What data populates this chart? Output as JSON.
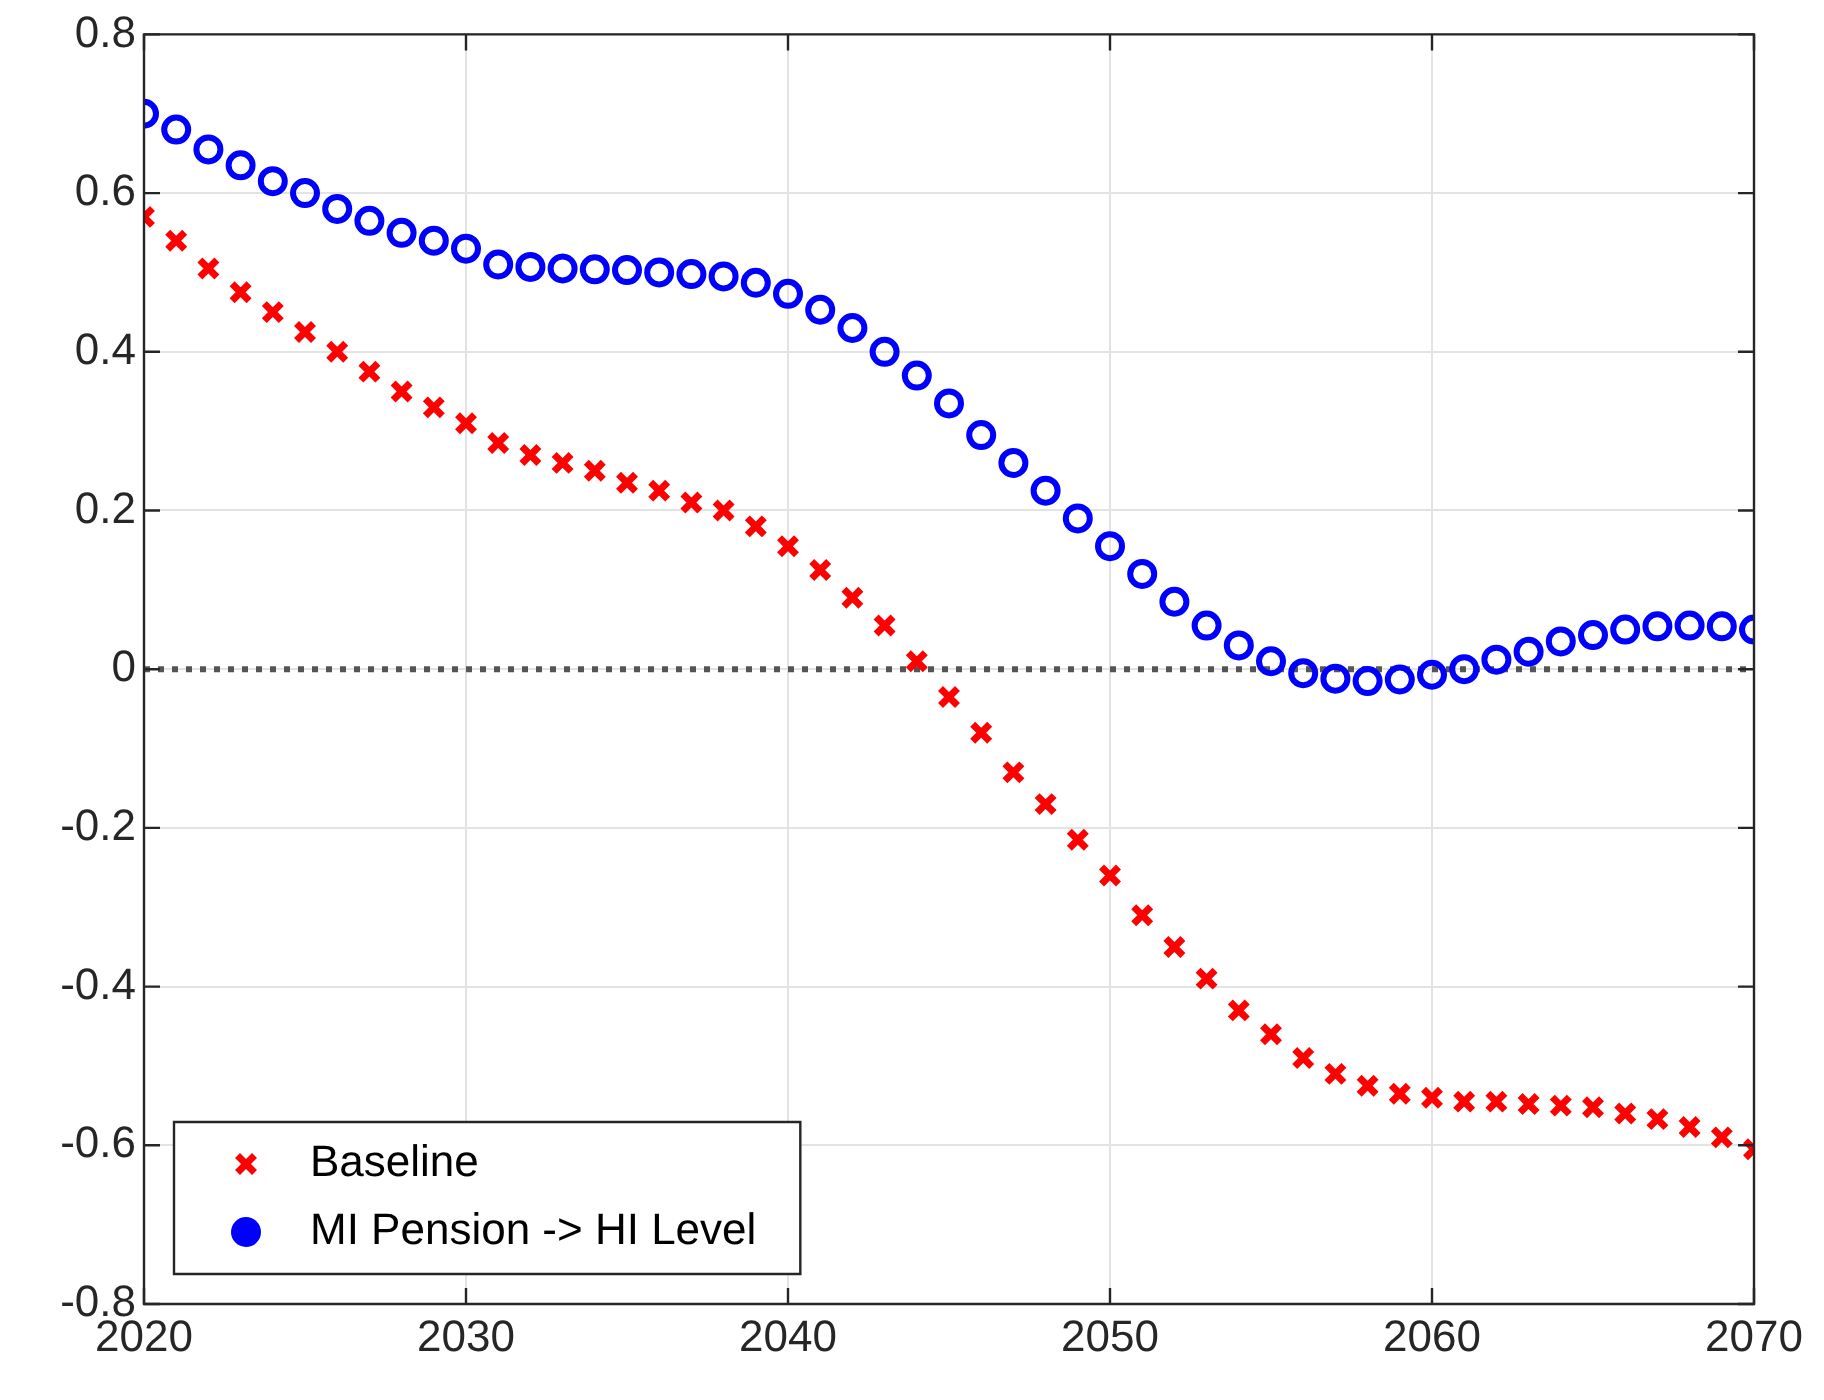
{
  "chart_data": {
    "type": "scatter",
    "x": [
      2020,
      2021,
      2022,
      2023,
      2024,
      2025,
      2026,
      2027,
      2028,
      2029,
      2030,
      2031,
      2032,
      2033,
      2034,
      2035,
      2036,
      2037,
      2038,
      2039,
      2040,
      2041,
      2042,
      2043,
      2044,
      2045,
      2046,
      2047,
      2048,
      2049,
      2050,
      2051,
      2052,
      2053,
      2054,
      2055,
      2056,
      2057,
      2058,
      2059,
      2060,
      2061,
      2062,
      2063,
      2064,
      2065,
      2066,
      2067,
      2068,
      2069,
      2070
    ],
    "series": [
      {
        "name": "Baseline",
        "color": "#ff0000",
        "marker": "cross",
        "values": [
          0.57,
          0.54,
          0.505,
          0.475,
          0.45,
          0.425,
          0.4,
          0.375,
          0.35,
          0.33,
          0.31,
          0.285,
          0.27,
          0.26,
          0.25,
          0.235,
          0.225,
          0.21,
          0.2,
          0.18,
          0.155,
          0.125,
          0.09,
          0.055,
          0.01,
          -0.035,
          -0.08,
          -0.13,
          -0.17,
          -0.215,
          -0.26,
          -0.31,
          -0.35,
          -0.39,
          -0.43,
          -0.46,
          -0.49,
          -0.51,
          -0.525,
          -0.535,
          -0.54,
          -0.545,
          -0.545,
          -0.548,
          -0.55,
          -0.552,
          -0.56,
          -0.567,
          -0.577,
          -0.59,
          -0.605
        ]
      },
      {
        "name": "MI Pension -> HI Level",
        "color": "#0000ff",
        "marker": "circle",
        "values": [
          0.7,
          0.68,
          0.655,
          0.635,
          0.615,
          0.6,
          0.58,
          0.565,
          0.55,
          0.54,
          0.53,
          0.51,
          0.507,
          0.505,
          0.504,
          0.503,
          0.5,
          0.498,
          0.495,
          0.487,
          0.473,
          0.453,
          0.43,
          0.4,
          0.37,
          0.335,
          0.295,
          0.26,
          0.225,
          0.19,
          0.155,
          0.12,
          0.085,
          0.055,
          0.03,
          0.01,
          -0.005,
          -0.012,
          -0.015,
          -0.013,
          -0.007,
          0.0,
          0.012,
          0.022,
          0.035,
          0.043,
          0.05,
          0.054,
          0.055,
          0.054,
          0.05
        ]
      }
    ],
    "xlim": [
      2020,
      2070
    ],
    "xticks": [
      2020,
      2030,
      2040,
      2050,
      2060,
      2070
    ],
    "ylim": [
      -0.8,
      0.8
    ],
    "yticks": [
      -0.8,
      -0.6,
      -0.4,
      -0.2,
      0,
      0.2,
      0.4,
      0.6,
      0.8
    ],
    "ref_lines": [
      {
        "axis": "y",
        "value": 0,
        "color": "#555555",
        "line_style": "dotted"
      }
    ],
    "grid": true,
    "legend": "bottom left"
  }
}
